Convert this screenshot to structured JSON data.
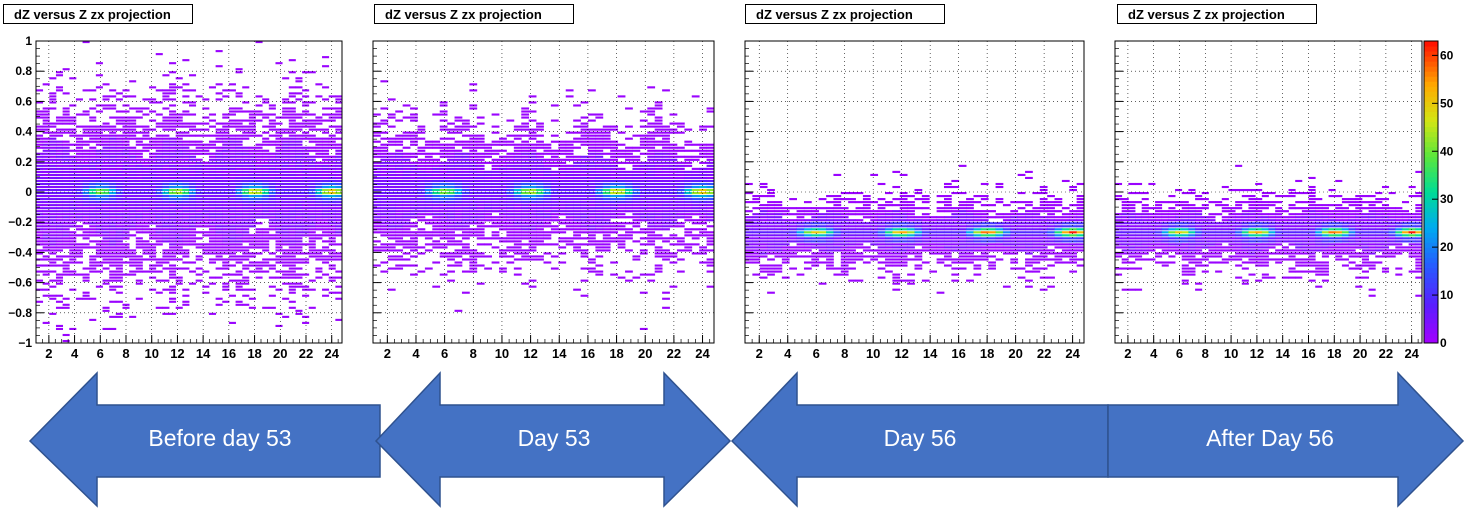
{
  "chart_data": [
    {
      "type": "heatmap",
      "title": "dZ  versus Z zx projection",
      "xlim": [
        1,
        24.8
      ],
      "ylim": [
        -1,
        1
      ],
      "x_ticks": [
        2,
        4,
        6,
        8,
        10,
        12,
        14,
        16,
        18,
        20,
        22,
        24
      ],
      "y_ticks": [
        -1,
        -0.8,
        -0.6,
        -0.4,
        -0.2,
        0,
        0.2,
        0.4,
        0.6,
        0.8,
        1
      ],
      "grid": true,
      "core_dz": 0.0,
      "core_hot_z": [
        6,
        12,
        18,
        24
      ],
      "spread": "wide"
    },
    {
      "type": "heatmap",
      "title": "dZ  versus Z zx projection",
      "xlim": [
        1,
        24.8
      ],
      "ylim": [
        -1,
        1
      ],
      "x_ticks": [
        2,
        4,
        6,
        8,
        10,
        12,
        14,
        16,
        18,
        20,
        22,
        24
      ],
      "grid": true,
      "core_dz": 0.0,
      "core_hot_z": [
        6,
        12,
        18,
        24
      ],
      "spread": "medium"
    },
    {
      "type": "heatmap",
      "title": "dZ  versus Z zx projection",
      "xlim": [
        1,
        24.8
      ],
      "ylim": [
        -1,
        1
      ],
      "x_ticks": [
        2,
        4,
        6,
        8,
        10,
        12,
        14,
        16,
        18,
        20,
        22,
        24
      ],
      "grid": true,
      "core_dz": -0.27,
      "core_hot_z": [
        6,
        12,
        18,
        24
      ],
      "spread": "narrow"
    },
    {
      "type": "heatmap",
      "title": "dZ  versus Z zx projection",
      "xlim": [
        1,
        24.8
      ],
      "ylim": [
        -1,
        1
      ],
      "x_ticks": [
        2,
        4,
        6,
        8,
        10,
        12,
        14,
        16,
        18,
        20,
        22,
        24
      ],
      "grid": true,
      "core_dz": -0.27,
      "core_hot_z": [
        6,
        12,
        18,
        24
      ],
      "spread": "narrow",
      "colorbar": {
        "min": 0,
        "max": 63,
        "ticks": [
          "0",
          "10",
          "20",
          "30",
          "40",
          "50",
          "60"
        ]
      }
    }
  ],
  "arrows": [
    {
      "label": "Before day 53",
      "direction": "left"
    },
    {
      "label": "Day 53",
      "direction": "both"
    },
    {
      "label": "Day 56",
      "direction": "left"
    },
    {
      "label": "After Day 56",
      "direction": "right"
    }
  ],
  "colors": {
    "arrow_fill": "#4472c4",
    "arrow_stroke": "#2f528f",
    "arrow_text": "#ffffff"
  }
}
